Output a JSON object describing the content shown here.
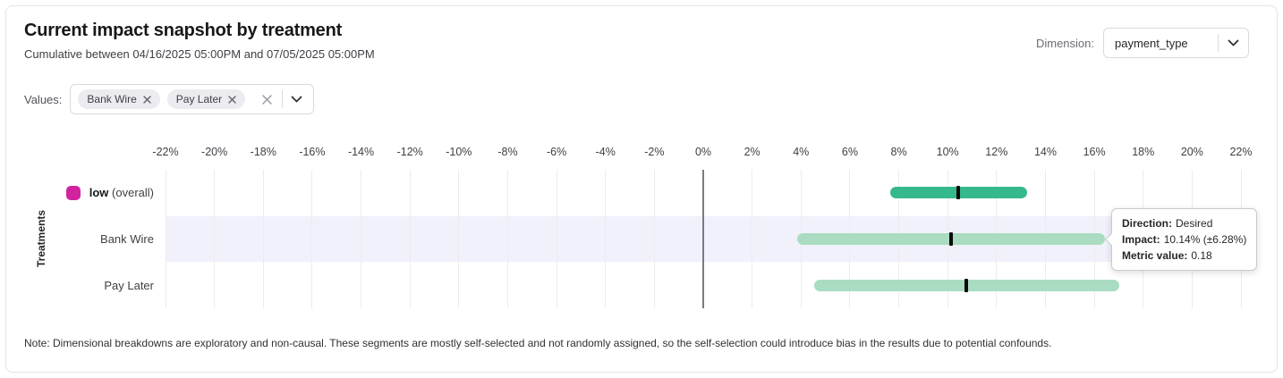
{
  "header": {
    "title": "Current impact snapshot by treatment",
    "subtitle": "Cumulative between 04/16/2025 05:00PM and 07/05/2025 05:00PM",
    "dimension_label": "Dimension:",
    "dimension_value": "payment_type"
  },
  "filters": {
    "values_label": "Values:",
    "chips": [
      {
        "label": "Bank Wire"
      },
      {
        "label": "Pay Later"
      }
    ]
  },
  "chart_data": {
    "type": "bar",
    "variant": "horizontal-interval-bars",
    "title": "Current impact snapshot by treatment",
    "ylabel": "Treatments",
    "xlabel": "",
    "grid": true,
    "x_axis": {
      "min": -22,
      "max": 22,
      "step": 2,
      "unit": "%",
      "tick_values": [
        -22,
        -20,
        -18,
        -16,
        -14,
        -12,
        -10,
        -8,
        -6,
        -4,
        -2,
        0,
        2,
        4,
        6,
        8,
        10,
        12,
        14,
        16,
        18,
        20,
        22
      ],
      "tick_labels": [
        "-22%",
        "-20%",
        "-18%",
        "-16%",
        "-14%",
        "-12%",
        "-10%",
        "-8%",
        "-6%",
        "-4%",
        "-2%",
        "0%",
        "2%",
        "4%",
        "6%",
        "8%",
        "10%",
        "12%",
        "14%",
        "16%",
        "18%",
        "20%",
        "22%"
      ]
    },
    "rows": [
      {
        "name": "low (overall)",
        "bold_part": "low",
        "rest_part": " (overall)",
        "swatch_color": "#d2239e",
        "bar_color": "#35b98c",
        "impact": 10.45,
        "ci_low": 7.65,
        "ci_high": 13.25,
        "highlighted": false
      },
      {
        "name": "Bank Wire",
        "bar_color": "#a9dcc1",
        "impact": 10.14,
        "ci_low": 3.86,
        "ci_high": 16.42,
        "highlighted": true
      },
      {
        "name": "Pay Later",
        "bar_color": "#a9dcc1",
        "impact": 10.78,
        "ci_low": 4.54,
        "ci_high": 17.02,
        "highlighted": false
      }
    ],
    "colors": {
      "overall_bar": "#35b98c",
      "segment_bar": "#a9dcc1",
      "legend_swatch": "#d2239e",
      "highlight_band": "#f1f1fb",
      "gridline": "#ececf0",
      "zero_line": "#7a7a82",
      "point_marker": "#0a0a0a"
    }
  },
  "tooltip": {
    "direction_label": "Direction:",
    "direction_value": "Desired",
    "impact_label": "Impact:",
    "impact_value": "10.14% (±6.28%)",
    "metric_label": "Metric value:",
    "metric_value": "0.18"
  },
  "note": "Note: Dimensional breakdowns are exploratory and non-causal. These segments are mostly self-selected and not randomly assigned, so the self-selection could introduce bias in the results due to potential confounds."
}
